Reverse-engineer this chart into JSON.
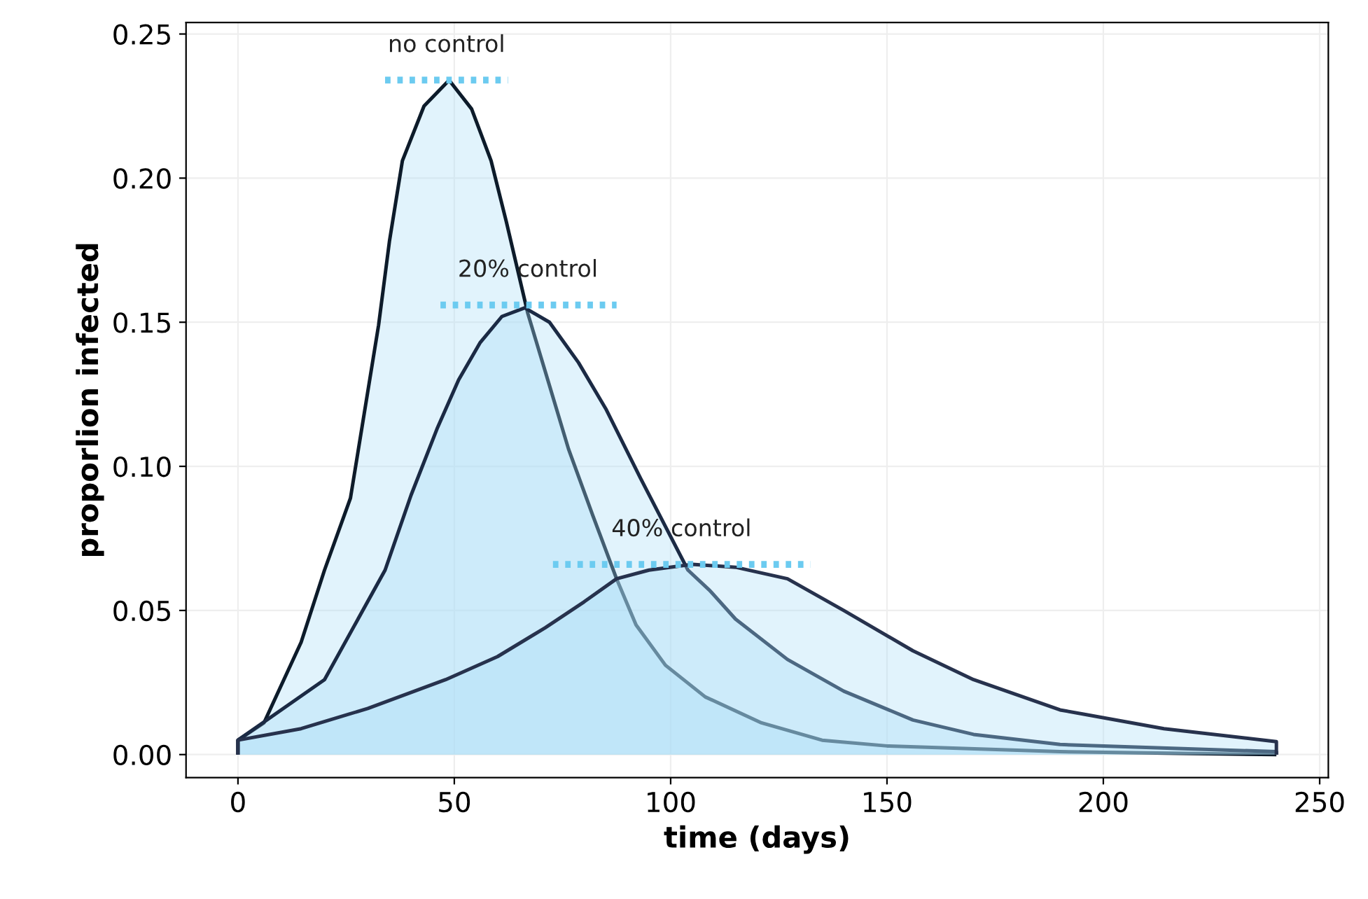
{
  "chart_data": {
    "type": "area",
    "xlabel": "time (days)",
    "ylabel": "proporlion infected",
    "xlim": [
      -12,
      252
    ],
    "ylim": [
      -0.008,
      0.254
    ],
    "xticks": [
      0,
      50,
      100,
      150,
      200,
      250
    ],
    "yticks": [
      {
        "value": 0,
        "label": "0.00"
      },
      {
        "value": 0.05,
        "label": "0.05"
      },
      {
        "value": 0.1,
        "label": "0.10"
      },
      {
        "value": 0.15,
        "label": "0.15"
      },
      {
        "value": 0.2,
        "label": "0.20"
      },
      {
        "value": 0.25,
        "label": "0.25"
      }
    ],
    "grid": true,
    "legend": false,
    "series": [
      {
        "color": "#0d1b2a",
        "x": [
          0,
          6,
          14.6,
          20,
          26,
          32.5,
          35,
          38,
          43,
          48.8,
          54,
          58.5,
          62,
          67,
          72,
          76.4,
          82,
          87.5,
          92,
          98.8,
          108,
          121,
          135,
          150,
          190,
          240
        ],
        "values": [
          0.005,
          0.011,
          0.039,
          0.064,
          0.089,
          0.149,
          0.178,
          0.206,
          0.225,
          0.234,
          0.224,
          0.206,
          0.185,
          0.153,
          0.128,
          0.106,
          0.083,
          0.061,
          0.045,
          0.031,
          0.02,
          0.011,
          0.005,
          0.003,
          0.001,
          0.0
        ]
      },
      {
        "color": "#1b2a44",
        "x": [
          0,
          20,
          34,
          40,
          46,
          51,
          56,
          61,
          66.3,
          72,
          78.7,
          85,
          93,
          104,
          109,
          115,
          127,
          140,
          156,
          170,
          190,
          240
        ],
        "values": [
          0.005,
          0.026,
          0.064,
          0.09,
          0.113,
          0.13,
          0.143,
          0.152,
          0.155,
          0.15,
          0.136,
          0.12,
          0.096,
          0.064,
          0.057,
          0.047,
          0.033,
          0.022,
          0.012,
          0.007,
          0.0035,
          0.001
        ]
      },
      {
        "color": "#27324d",
        "x": [
          0,
          14.6,
          30,
          48,
          60,
          71,
          80,
          87.5,
          95,
          105,
          115,
          127,
          140,
          156,
          170,
          190,
          214,
          240
        ],
        "values": [
          0.005,
          0.009,
          0.016,
          0.026,
          0.034,
          0.044,
          0.053,
          0.061,
          0.064,
          0.066,
          0.065,
          0.061,
          0.05,
          0.036,
          0.026,
          0.0155,
          0.009,
          0.0045
        ]
      },
      {
        "type": "line",
        "color": "#6ccbf0",
        "line_style": "dotted",
        "x": [
          34,
          62.4
        ],
        "values": [
          0.234,
          0.234
        ]
      },
      {
        "type": "line",
        "color": "#6ccbf0",
        "line_style": "dotted",
        "x": [
          46.8,
          87.5
        ],
        "values": [
          0.156,
          0.156
        ]
      },
      {
        "type": "line",
        "color": "#6ccbf0",
        "line_style": "dotted",
        "x": [
          72.8,
          132.3
        ],
        "values": [
          0.066,
          0.066
        ]
      }
    ],
    "annotations": [
      {
        "text": "no control",
        "x": 48.2,
        "y": 0.234
      },
      {
        "text": "20% control",
        "x": 67,
        "y": 0.156
      },
      {
        "text": "40% control",
        "x": 102.5,
        "y": 0.066
      }
    ]
  }
}
